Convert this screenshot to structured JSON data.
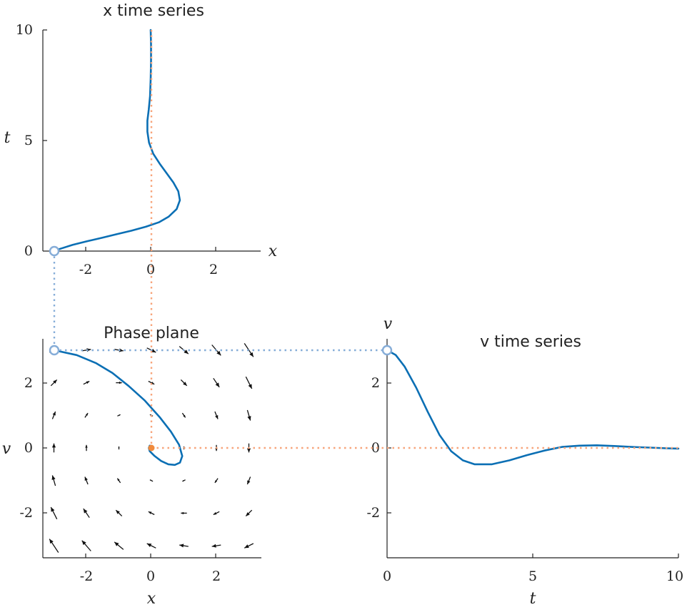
{
  "chart_data": [
    {
      "id": "x_ts",
      "type": "line",
      "title": "x time series",
      "xlabel": "x",
      "ylabel": "t",
      "xlim": [
        -3.2,
        3.5
      ],
      "ylim": [
        0,
        10
      ],
      "xticks": [
        -2,
        0,
        2
      ],
      "yticks": [
        0,
        5,
        10
      ],
      "series": [
        {
          "color": "#0b6fb4",
          "x": [
            -3.0,
            -2.75,
            -2.4,
            -1.95,
            -1.5,
            -1.05,
            -0.6,
            -0.15,
            0.25,
            0.55,
            0.8,
            0.9,
            0.85,
            0.7,
            0.5,
            0.28,
            0.08,
            -0.05,
            -0.1,
            -0.1,
            -0.06,
            -0.02,
            0.0,
            0.01,
            0.01,
            0.0
          ],
          "y": [
            0.0,
            0.12,
            0.28,
            0.45,
            0.6,
            0.76,
            0.92,
            1.1,
            1.3,
            1.55,
            1.9,
            2.3,
            2.7,
            3.1,
            3.5,
            3.95,
            4.4,
            4.9,
            5.4,
            5.9,
            6.4,
            7.0,
            7.8,
            8.6,
            9.3,
            10.0
          ]
        }
      ],
      "start_point": {
        "x": -3.0,
        "y": 0
      }
    },
    {
      "id": "phase",
      "type": "scatter",
      "title": "Phase plane",
      "xlabel": "x",
      "ylabel": "v",
      "xlim": [
        -3.2,
        3.5
      ],
      "ylim": [
        -3.5,
        3.3
      ],
      "xticks": [
        -2,
        0,
        2
      ],
      "yticks": [
        -2,
        0,
        2
      ],
      "trajectory": {
        "color": "#0b6fb4",
        "x": [
          -3.0,
          -2.3,
          -1.7,
          -1.2,
          -0.7,
          -0.2,
          0.25,
          0.6,
          0.85,
          0.95,
          0.88,
          0.72,
          0.52,
          0.3,
          0.1,
          -0.05,
          -0.08,
          -0.05,
          0.0,
          0.03,
          0.0
        ],
        "v": [
          3.0,
          2.85,
          2.6,
          2.3,
          1.9,
          1.45,
          0.95,
          0.5,
          0.1,
          -0.25,
          -0.45,
          -0.52,
          -0.5,
          -0.4,
          -0.25,
          -0.1,
          0.0,
          0.07,
          0.06,
          0.03,
          0.0
        ]
      },
      "start_point": {
        "x": -3.0,
        "v": 3.0
      },
      "equilibrium": {
        "x": 0,
        "v": 0
      },
      "vector_field": {
        "grid_x": [
          -3,
          -2,
          -1,
          0,
          1,
          2,
          3
        ],
        "grid_v": [
          3,
          2,
          1,
          0,
          -1,
          -2,
          -3
        ],
        "field": "dx = v, dv = -x - 0.5 v"
      }
    },
    {
      "id": "v_ts",
      "type": "line",
      "title": "v time series",
      "xlabel": "t",
      "ylabel": "v",
      "xlim": [
        0,
        10
      ],
      "ylim": [
        -3.5,
        3.3
      ],
      "xticks": [
        0,
        5,
        10
      ],
      "yticks": [
        -2,
        0,
        2
      ],
      "series": [
        {
          "color": "#0b6fb4",
          "x": [
            0.0,
            0.3,
            0.6,
            1.0,
            1.4,
            1.8,
            2.2,
            2.6,
            3.0,
            3.6,
            4.2,
            4.8,
            5.4,
            6.0,
            6.6,
            7.2,
            7.8,
            8.4,
            9.0,
            9.6,
            10.0
          ],
          "y": [
            3.0,
            2.85,
            2.5,
            1.85,
            1.1,
            0.4,
            -0.1,
            -0.38,
            -0.5,
            -0.5,
            -0.38,
            -0.22,
            -0.08,
            0.03,
            0.07,
            0.08,
            0.06,
            0.03,
            0.01,
            -0.01,
            -0.02
          ]
        }
      ],
      "start_point": {
        "x": 0,
        "y": 3.0
      }
    }
  ]
}
